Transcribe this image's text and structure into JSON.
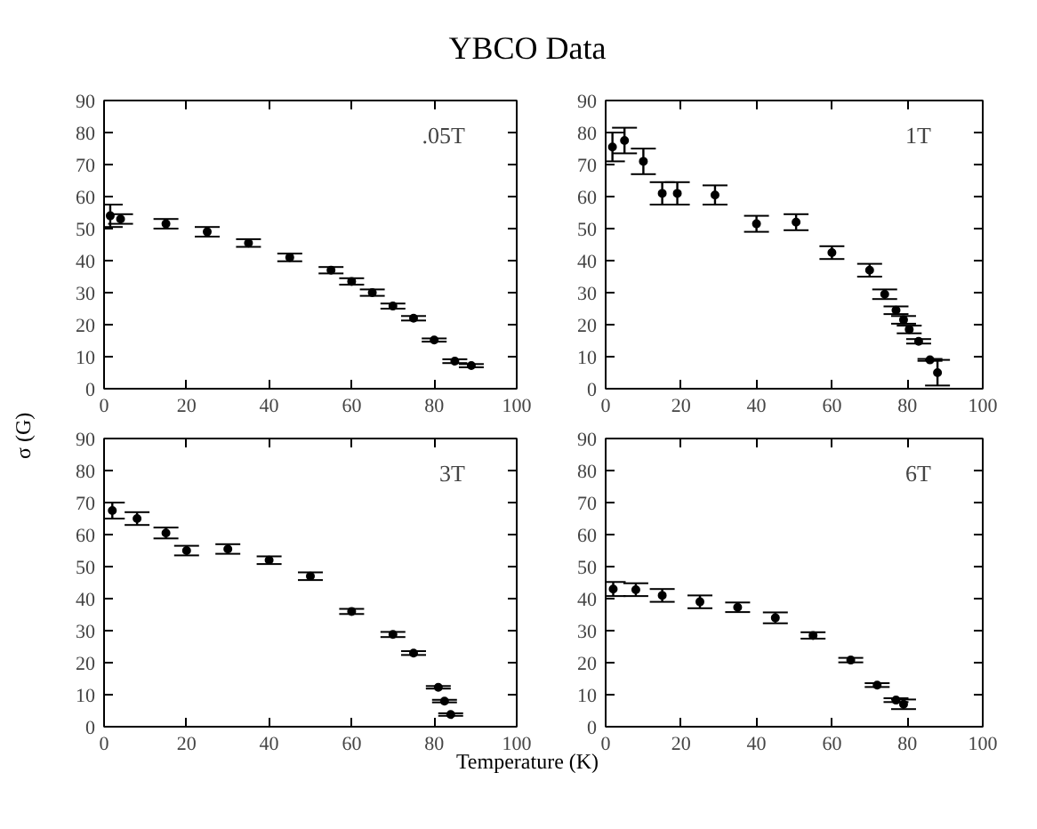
{
  "chart_data": [
    {
      "type": "scatter",
      "title": "YBCO Data",
      "ylabel": "σ (G)",
      "annotations": [
        ".05T"
      ],
      "marker": "circle",
      "grid": false,
      "xlim": [
        0,
        100
      ],
      "ylim": [
        0,
        90
      ],
      "xticks": [
        0,
        20,
        40,
        60,
        80,
        100
      ],
      "yticks": [
        0,
        10,
        20,
        30,
        40,
        50,
        60,
        70,
        80,
        90
      ],
      "series": [
        {
          "color": "#000000",
          "x": [
            1.5,
            4,
            15,
            25,
            35,
            45,
            55,
            60,
            65,
            70,
            75,
            80,
            85,
            89
          ],
          "values": [
            54,
            53,
            51.5,
            49,
            45.5,
            41,
            37,
            33.5,
            30,
            25.8,
            22,
            15.2,
            8.6,
            7.2
          ],
          "errors": [
            3.5,
            1.5,
            1.5,
            1.5,
            1.2,
            1.2,
            1,
            1,
            1,
            0.8,
            0.7,
            0.5,
            0.6,
            0.5
          ]
        }
      ]
    },
    {
      "type": "scatter",
      "annotations": [
        "1T"
      ],
      "marker": "circle",
      "grid": false,
      "xlim": [
        0,
        100
      ],
      "ylim": [
        0,
        90
      ],
      "xticks": [
        0,
        20,
        40,
        60,
        80,
        100
      ],
      "yticks": [
        0,
        10,
        20,
        30,
        40,
        50,
        60,
        70,
        80,
        90
      ],
      "series": [
        {
          "color": "#000000",
          "x": [
            1.8,
            5,
            10,
            15,
            19,
            29,
            40,
            50.5,
            60,
            70,
            74,
            77,
            79,
            80.5,
            83,
            86,
            88
          ],
          "values": [
            75.5,
            77.5,
            71,
            61,
            61,
            60.5,
            51.5,
            52,
            42.5,
            37,
            29.5,
            24.5,
            21.5,
            18.5,
            14.8,
            9,
            5
          ],
          "errors": [
            4.5,
            4,
            4,
            3.5,
            3.5,
            3,
            2.5,
            2.5,
            2,
            2,
            1.5,
            1.2,
            1.2,
            1.2,
            0.7,
            0.3,
            4
          ]
        }
      ]
    },
    {
      "type": "scatter",
      "annotations": [
        "3T"
      ],
      "marker": "circle",
      "grid": false,
      "xlim": [
        0,
        100
      ],
      "ylim": [
        0,
        90
      ],
      "xticks": [
        0,
        20,
        40,
        60,
        80,
        100
      ],
      "yticks": [
        0,
        10,
        20,
        30,
        40,
        50,
        60,
        70,
        80,
        90
      ],
      "series": [
        {
          "color": "#000000",
          "x": [
            2,
            8,
            15,
            20,
            30,
            40,
            50,
            60,
            70,
            75,
            81,
            82.5,
            84
          ],
          "values": [
            67.5,
            65,
            60.5,
            55,
            55.5,
            52,
            47,
            36,
            28.8,
            23,
            12.3,
            8,
            3.8
          ],
          "errors": [
            2.5,
            2,
            1.7,
            1.5,
            1.5,
            1.2,
            1.2,
            0.8,
            0.8,
            0.6,
            0.4,
            0.4,
            0.4
          ]
        }
      ]
    },
    {
      "type": "scatter",
      "xlabel": "Temperature (K)",
      "annotations": [
        "6T"
      ],
      "marker": "circle",
      "grid": false,
      "xlim": [
        0,
        100
      ],
      "ylim": [
        0,
        90
      ],
      "xticks": [
        0,
        20,
        40,
        60,
        80,
        100
      ],
      "yticks": [
        0,
        10,
        20,
        30,
        40,
        50,
        60,
        70,
        80,
        90
      ],
      "series": [
        {
          "color": "#000000",
          "x": [
            2,
            8,
            15,
            25,
            35,
            45,
            55,
            65,
            72,
            77,
            79
          ],
          "values": [
            43,
            42.8,
            41,
            39,
            37.3,
            34,
            28.5,
            20.8,
            13,
            8.3,
            7
          ],
          "errors": [
            2.2,
            2,
            2,
            2,
            1.5,
            1.7,
            1,
            0.7,
            0.6,
            0.6,
            1.5
          ]
        }
      ]
    }
  ]
}
